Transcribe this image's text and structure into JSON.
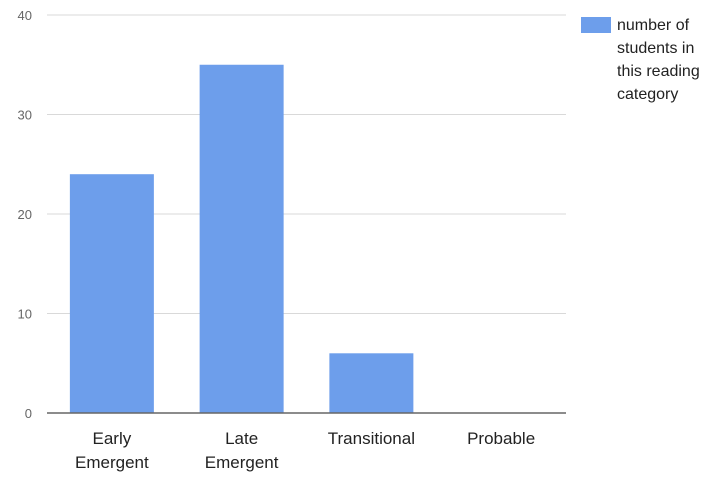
{
  "chart_data": {
    "type": "bar",
    "title": "",
    "xlabel": "",
    "ylabel": "",
    "categories": [
      [
        "Early",
        "Emergent"
      ],
      [
        "Late",
        "Emergent"
      ],
      [
        "Transitional"
      ],
      [
        "Probable"
      ]
    ],
    "series": [
      {
        "name": [
          "number of",
          "students in",
          "this reading",
          "category"
        ],
        "values": [
          24,
          35,
          6,
          0
        ],
        "color": "#6d9eeb"
      }
    ],
    "ylim": [
      0,
      40
    ],
    "yticks": [
      "0",
      "10",
      "20",
      "30",
      "40"
    ],
    "grid": true,
    "legend_position": "right"
  },
  "colors": {
    "bar": "#6d9eeb",
    "grid": "#d9d9d9",
    "baseline": "#666666"
  }
}
